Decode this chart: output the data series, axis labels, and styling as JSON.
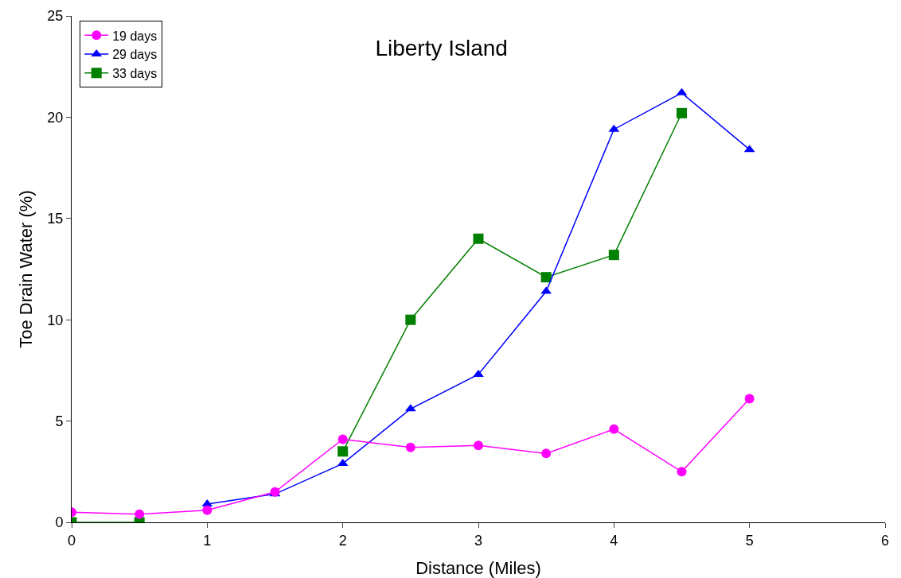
{
  "chart_data": {
    "type": "line",
    "title": "Liberty Island",
    "xlabel": "Distance (Miles)",
    "ylabel": "Toe Drain Water (%)",
    "xlim": [
      0,
      6
    ],
    "xticks": [
      0,
      1,
      2,
      3,
      4,
      5,
      6
    ],
    "ylim": [
      0,
      25
    ],
    "yticks": [
      0,
      5,
      10,
      15,
      20,
      25
    ],
    "grid": false,
    "legend": "top left",
    "series": [
      {
        "name": "19 days",
        "color": "#ff00ff",
        "marker": "circle",
        "x": [
          0,
          0.5,
          1,
          1.5,
          2,
          2.5,
          3,
          3.5,
          4,
          4.5,
          5
        ],
        "values": [
          0.5,
          0.4,
          0.6,
          1.5,
          4.1,
          3.7,
          3.8,
          3.4,
          4.6,
          2.5,
          6.1
        ]
      },
      {
        "name": "29 days",
        "color": "#0000ff",
        "marker": "triangle",
        "x": [
          1,
          1.5,
          2,
          2.5,
          3,
          3.5,
          4,
          4.5,
          5
        ],
        "values": [
          0.9,
          1.4,
          2.9,
          5.6,
          7.3,
          11.4,
          19.4,
          21.2,
          18.4
        ]
      },
      {
        "name": "33 days",
        "color": "#008000",
        "marker": "square",
        "x": [
          0,
          0.5,
          1,
          1.5,
          2,
          2.5,
          3,
          3.5,
          4,
          4.5
        ],
        "values": [
          0,
          0,
          null,
          null,
          3.5,
          10,
          14,
          12.1,
          13.2,
          20.2
        ]
      }
    ]
  }
}
